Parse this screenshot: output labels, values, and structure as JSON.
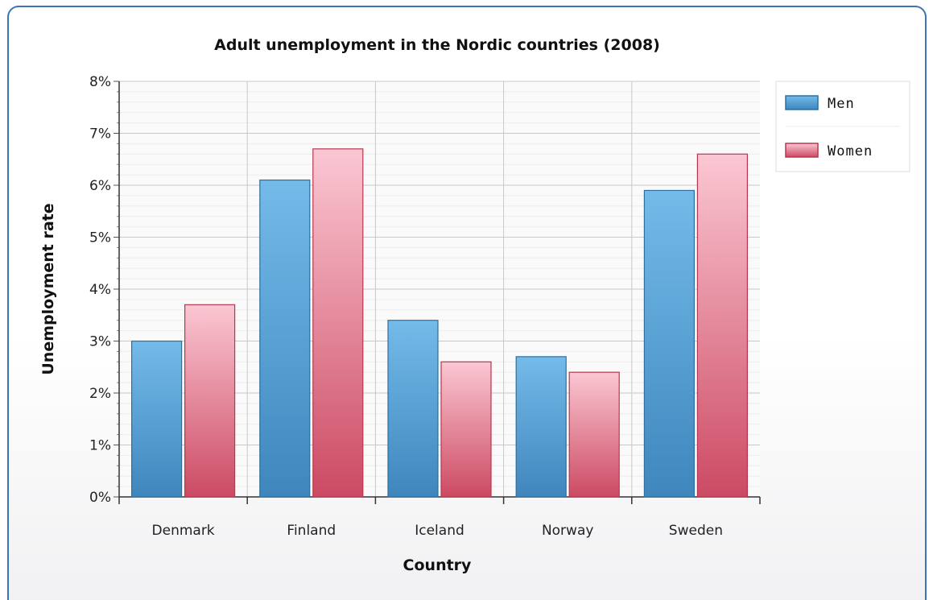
{
  "chart_data": {
    "type": "bar",
    "title": "Adult unemployment in the Nordic countries (2008)",
    "xlabel": "Country",
    "ylabel": "Unemployment rate",
    "categories": [
      "Denmark",
      "Finland",
      "Iceland",
      "Norway",
      "Sweden"
    ],
    "series": [
      {
        "name": "Men",
        "values": [
          3.0,
          6.1,
          3.4,
          2.7,
          5.9
        ],
        "color": "#5aa6dc",
        "stroke": "#2e6f9f"
      },
      {
        "name": "Women",
        "values": [
          3.7,
          6.7,
          2.6,
          2.4,
          6.6
        ],
        "color": "#f4a9b8",
        "stroke": "#b8374f"
      }
    ],
    "ylim": [
      0,
      8
    ],
    "yticks": [
      0,
      1,
      2,
      3,
      4,
      5,
      6,
      7,
      8
    ],
    "ytick_labels": [
      "0%",
      "1%",
      "2%",
      "3%",
      "4%",
      "5%",
      "6%",
      "7%",
      "8%"
    ],
    "grid": true,
    "legend": "top-right"
  }
}
